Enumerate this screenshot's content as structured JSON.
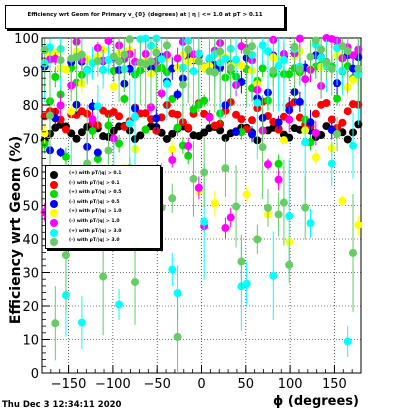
{
  "header": {
    "title": "Efficiency wrt Geom for Primary v_{0} (degrees) at | η | <= 1.0 at pT > 0.11"
  },
  "footer": {
    "timestamp": "Thu Dec  3 12:34:11 2020"
  },
  "chart_data": {
    "type": "scatter",
    "title": "Efficiency wrt Geom for Primary v_{0} (degrees) at | η | <= 1.0 at pT > 0.11",
    "xlabel": "ϕ (degrees)",
    "ylabel": "Efficiency wrt Geom (%)",
    "xlim": [
      -180,
      180
    ],
    "ylim": [
      0,
      100
    ],
    "xticks": [
      -150,
      -100,
      -50,
      0,
      50,
      100,
      150
    ],
    "yticks": [
      0,
      10,
      20,
      30,
      40,
      50,
      60,
      70,
      80,
      90,
      100
    ],
    "grid": true,
    "legend_position": "middle-left",
    "series": [
      {
        "name": "(+) with pT/|q| > 0.1",
        "color": "#000000",
        "y_min": 68,
        "y_max": 75
      },
      {
        "name": "(-) with pT/|q| > 0.1",
        "color": "#ff0000",
        "y_min": 70,
        "y_max": 81
      },
      {
        "name": "(+) with pT/|q| > 0.5",
        "color": "#00dd00",
        "y_min": 58,
        "y_max": 92
      },
      {
        "name": "(-) with pT/|q| > 0.5",
        "color": "#0000ff",
        "y_min": 55,
        "y_max": 95
      },
      {
        "name": "(+) with pT/|q| > 1.0",
        "color": "#ffff00",
        "y_min": 38,
        "y_max": 97
      },
      {
        "name": "(-) with pT/|q| > 1.0",
        "color": "#ff00ff",
        "y_min": 40,
        "y_max": 100
      },
      {
        "name": "(+) with pT/|q| > 3.0",
        "color": "#00ffff",
        "y_min": 8,
        "y_max": 100
      },
      {
        "name": "(-) with pT/|q| > 3.0",
        "color": "#66cc66",
        "y_min": 10,
        "y_max": 100
      }
    ]
  }
}
